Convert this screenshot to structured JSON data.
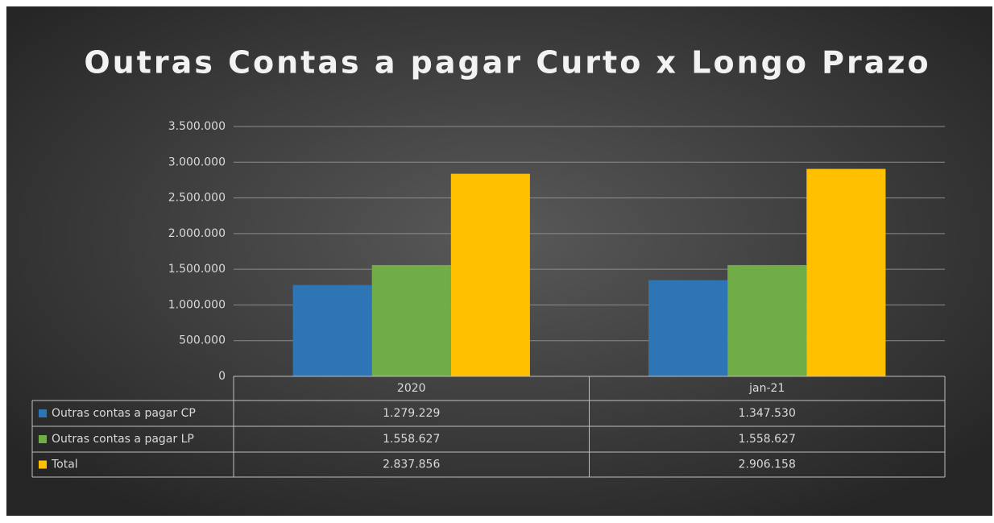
{
  "chart_data": {
    "type": "bar",
    "title": "Outras Contas a pagar Curto x Longo Prazo",
    "categories": [
      "2020",
      "jan-21"
    ],
    "series": [
      {
        "name": "Outras contas a pagar CP",
        "color": "#2e75b6",
        "values": [
          1279229,
          1347530
        ],
        "value_labels": [
          "1.279.229",
          "1.347.530"
        ]
      },
      {
        "name": "Outras contas a pagar LP",
        "color": "#70ad47",
        "values": [
          1558627,
          1558627
        ],
        "value_labels": [
          "1.558.627",
          "1.558.627"
        ]
      },
      {
        "name": "Total",
        "color": "#ffc000",
        "values": [
          2837856,
          2906158
        ],
        "value_labels": [
          "2.837.856",
          "2.906.158"
        ]
      }
    ],
    "ylim": [
      0,
      3500000
    ],
    "yticks": [
      0,
      {
        "value": 500000,
        "label": "500.000"
      },
      {
        "value": 1000000,
        "label": "1.000.000"
      },
      {
        "value": 1500000,
        "label": "1.500.000"
      },
      {
        "value": 2000000,
        "label": "2.000.000"
      },
      {
        "value": 2500000,
        "label": "2.500.000"
      },
      {
        "value": 3000000,
        "label": "3.000.000"
      },
      {
        "value": 3500000,
        "label": "3.500.000"
      }
    ],
    "grid": true
  }
}
